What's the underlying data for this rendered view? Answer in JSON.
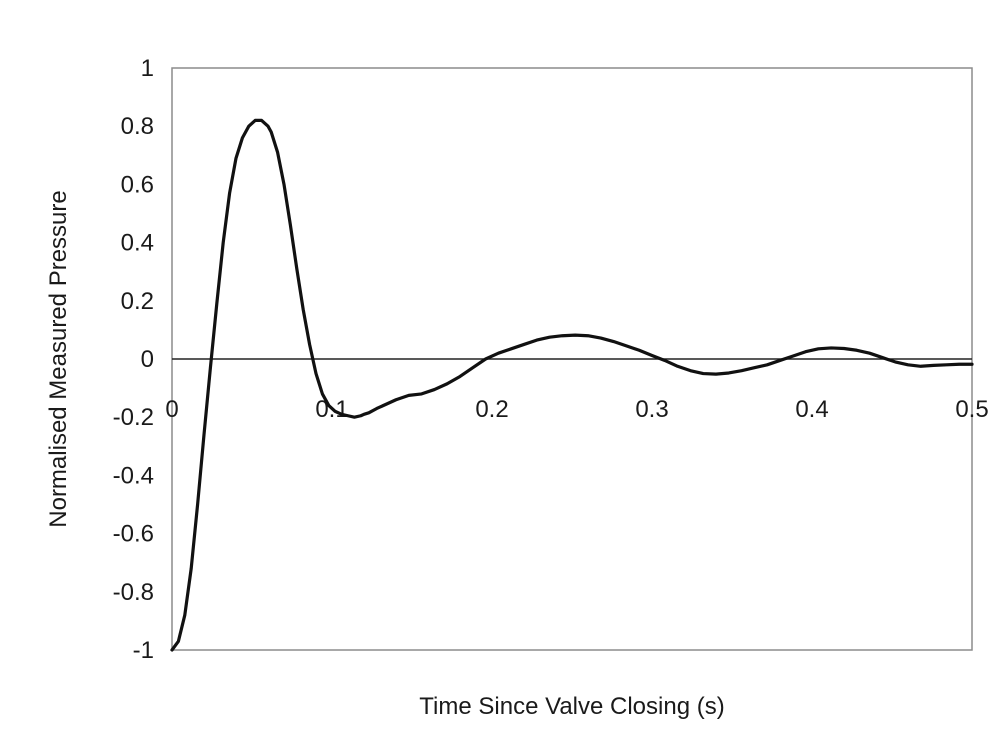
{
  "chart_data": {
    "type": "line",
    "title": "",
    "xlabel": "Time Since Valve Closing (s)",
    "ylabel": "Normalised Measured Pressure",
    "xlim": [
      0,
      0.5
    ],
    "ylim": [
      -1,
      1
    ],
    "x_ticks": [
      "0",
      "0.1",
      "0.2",
      "0.3",
      "0.4",
      "0.5"
    ],
    "y_ticks": [
      "1",
      "0.8",
      "0.6",
      "0.4",
      "0.2",
      "0",
      "-0.2",
      "-0.4",
      "-0.6",
      "-0.8",
      "-1"
    ],
    "grid": false,
    "legend": "none",
    "line_color": "#111111",
    "series": [
      {
        "x": [
          0,
          0.004,
          0.008,
          0.012,
          0.016,
          0.02,
          0.024,
          0.028,
          0.032,
          0.036,
          0.04,
          0.044,
          0.048,
          0.052,
          0.056,
          0.058,
          0.06,
          0.062,
          0.066,
          0.07,
          0.074,
          0.078,
          0.082,
          0.086,
          0.09,
          0.094,
          0.098,
          0.102,
          0.106,
          0.11,
          0.114,
          0.118,
          0.12,
          0.123,
          0.128,
          0.134,
          0.14,
          0.148,
          0.156,
          0.164,
          0.172,
          0.18,
          0.188,
          0.196,
          0.204,
          0.212,
          0.22,
          0.228,
          0.236,
          0.244,
          0.252,
          0.26,
          0.268,
          0.276,
          0.284,
          0.292,
          0.3,
          0.308,
          0.316,
          0.324,
          0.332,
          0.34,
          0.348,
          0.356,
          0.364,
          0.372,
          0.38,
          0.388,
          0.396,
          0.404,
          0.412,
          0.42,
          0.428,
          0.436,
          0.444,
          0.452,
          0.46,
          0.468,
          0.476,
          0.484,
          0.492,
          0.5
        ],
        "values": [
          -1.0,
          -0.97,
          -0.88,
          -0.72,
          -0.5,
          -0.26,
          -0.03,
          0.19,
          0.4,
          0.57,
          0.69,
          0.76,
          0.8,
          0.82,
          0.82,
          0.81,
          0.8,
          0.78,
          0.71,
          0.6,
          0.46,
          0.31,
          0.17,
          0.05,
          -0.05,
          -0.12,
          -0.16,
          -0.18,
          -0.19,
          -0.195,
          -0.2,
          -0.195,
          -0.19,
          -0.185,
          -0.17,
          -0.155,
          -0.14,
          -0.125,
          -0.12,
          -0.105,
          -0.085,
          -0.06,
          -0.03,
          0.0,
          0.02,
          0.035,
          0.05,
          0.065,
          0.075,
          0.08,
          0.082,
          0.08,
          0.072,
          0.06,
          0.045,
          0.03,
          0.012,
          -0.005,
          -0.025,
          -0.04,
          -0.05,
          -0.052,
          -0.048,
          -0.04,
          -0.03,
          -0.02,
          -0.005,
          0.01,
          0.025,
          0.035,
          0.038,
          0.036,
          0.03,
          0.02,
          0.005,
          -0.01,
          -0.02,
          -0.025,
          -0.022,
          -0.02,
          -0.018,
          -0.018
        ]
      }
    ]
  }
}
